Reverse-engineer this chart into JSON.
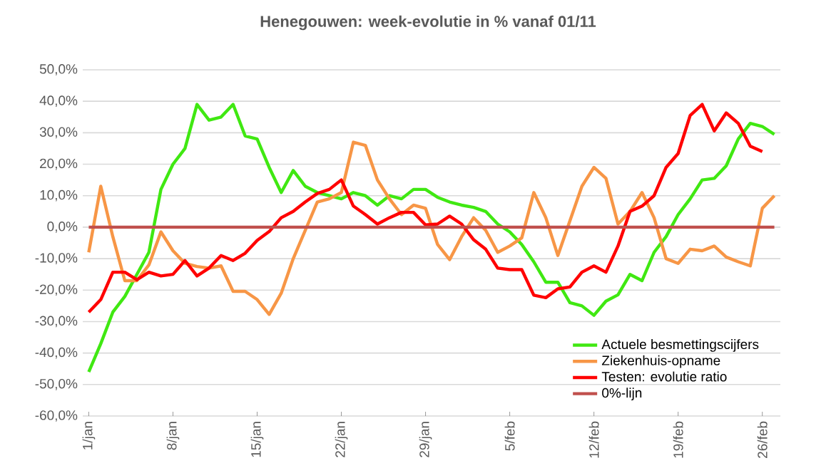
{
  "chart_data": {
    "type": "line",
    "title": "Henegouwen: week-evolutie in %  vanaf 01/11",
    "categories": [
      "1/jan",
      null,
      null,
      null,
      null,
      null,
      null,
      "8/jan",
      null,
      null,
      null,
      null,
      null,
      null,
      "15/jan",
      null,
      null,
      null,
      null,
      null,
      null,
      "22/jan",
      null,
      null,
      null,
      null,
      null,
      null,
      "29/jan",
      null,
      null,
      null,
      null,
      null,
      null,
      "5/feb",
      null,
      null,
      null,
      null,
      null,
      null,
      "12/feb",
      null,
      null,
      null,
      null,
      null,
      null,
      "19/feb",
      null,
      null,
      null,
      null,
      null,
      null,
      "26/feb",
      null
    ],
    "series": [
      {
        "name": "Actuele besmettingscijfers",
        "color": "#40e812",
        "values": [
          -46,
          -37,
          -27,
          -22,
          -15,
          -8,
          12,
          20,
          25,
          39,
          34,
          35,
          39,
          29,
          28,
          19,
          11,
          18,
          13,
          11,
          10,
          9,
          11,
          10,
          7,
          10,
          9,
          12,
          12,
          9.5,
          8,
          7,
          6.3,
          5,
          1,
          -1.5,
          -5.5,
          -11,
          -17.5,
          -17.5,
          -24,
          -25,
          -28,
          -23.5,
          -21.5,
          -15,
          -17,
          -8,
          -3,
          4,
          9,
          15,
          15.5,
          19.5,
          28,
          33,
          32,
          29.5
        ]
      },
      {
        "name": "Ziekenhuis-opname",
        "color": "#f79646",
        "values": [
          -8,
          13,
          -3,
          -17,
          -17,
          -12,
          -1.5,
          -7.5,
          -11.5,
          -12.5,
          -13,
          -12.3,
          -20.4,
          -20.4,
          -23,
          -27.7,
          -21,
          -10,
          -1,
          8,
          9,
          11,
          27,
          26,
          15,
          9,
          4,
          7,
          6,
          -5.5,
          -10.3,
          -3,
          3,
          -1,
          -8,
          -6,
          -3.4,
          11,
          3,
          -9,
          2,
          13,
          19,
          15.5,
          1,
          5,
          11,
          3,
          -10,
          -11.5,
          -7,
          -7.5,
          -6,
          -9.5,
          -11,
          -12.3,
          6,
          10
        ]
      },
      {
        "name": "Testen: evolutie ratio",
        "color": "#ff0000",
        "values": [
          -27,
          -23,
          -14.3,
          -14.3,
          -16.7,
          -14.3,
          -15.5,
          -15,
          -10.6,
          -15.5,
          -13,
          -9,
          -10.6,
          -8.3,
          -4.2,
          -1.4,
          3,
          5,
          8,
          10.7,
          12,
          15,
          6.7,
          4,
          1,
          3,
          4.7,
          4.7,
          0.7,
          1,
          3.5,
          1,
          -4,
          -7,
          -13,
          -13.5,
          -13.5,
          -21.6,
          -22.4,
          -19.6,
          -19,
          -14.3,
          -12.3,
          -14.3,
          -6,
          5,
          6.7,
          10,
          19,
          23.4,
          35.5,
          39,
          30.6,
          36.3,
          33,
          25.7,
          24,
          null
        ]
      },
      {
        "name": "0%-lijn",
        "color": "#c0504d",
        "values": [
          0,
          0,
          0,
          0,
          0,
          0,
          0,
          0,
          0,
          0,
          0,
          0,
          0,
          0,
          0,
          0,
          0,
          0,
          0,
          0,
          0,
          0,
          0,
          0,
          0,
          0,
          0,
          0,
          0,
          0,
          0,
          0,
          0,
          0,
          0,
          0,
          0,
          0,
          0,
          0,
          0,
          0,
          0,
          0,
          0,
          0,
          0,
          0,
          0,
          0,
          0,
          0,
          0,
          0,
          0,
          0,
          0,
          0
        ]
      }
    ],
    "ylim": [
      -60,
      50
    ],
    "yticks": [
      {
        "value": -60,
        "label": "-60,0%"
      },
      {
        "value": -50,
        "label": "-50,0%"
      },
      {
        "value": -40,
        "label": "-40,0%"
      },
      {
        "value": -30,
        "label": "-30,0%"
      },
      {
        "value": -20,
        "label": "-20,0%"
      },
      {
        "value": -10,
        "label": "-10,0%"
      },
      {
        "value": 0,
        "label": "0,0%"
      },
      {
        "value": 10,
        "label": "10,0%"
      },
      {
        "value": 20,
        "label": "20,0%"
      },
      {
        "value": 30,
        "label": "30,0%"
      },
      {
        "value": 40,
        "label": "40,0%"
      },
      {
        "value": 50,
        "label": "50,0%"
      }
    ],
    "grid": "y",
    "legend": "bottom right",
    "marker": "none",
    "line_style": "solid"
  }
}
